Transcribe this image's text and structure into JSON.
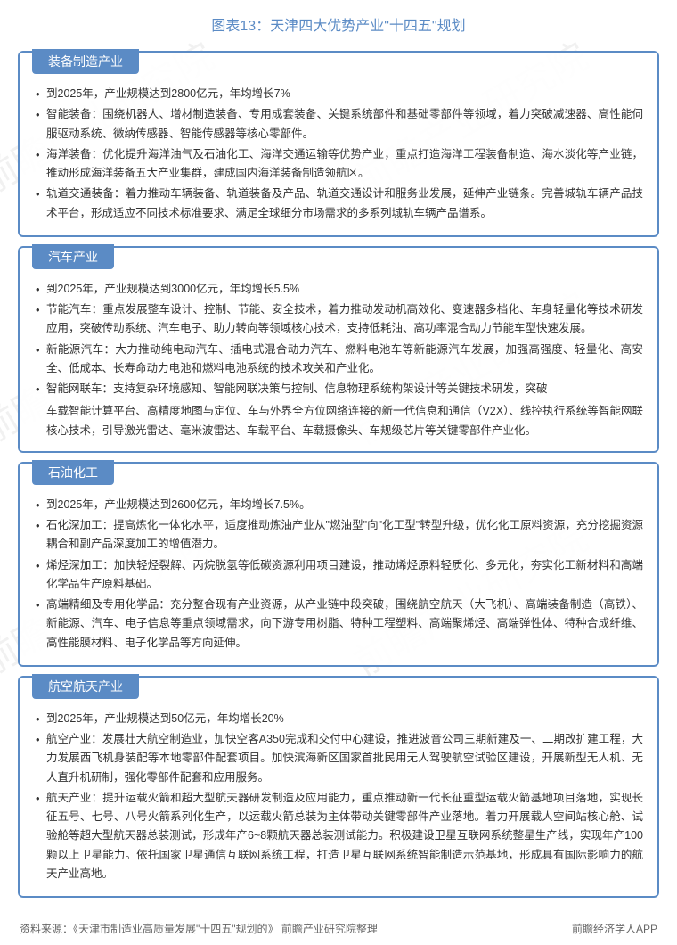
{
  "title": "图表13：天津四大优势产业\"十四五\"规划",
  "watermark_text": "前瞻产业研究院",
  "colors": {
    "accent": "#5b8bc5",
    "text": "#333333",
    "footer_text": "#666666",
    "background": "#ffffff"
  },
  "sections": [
    {
      "header": "装备制造产业",
      "bullets": [
        "到2025年，产业规模达到2800亿元，年均增长7%",
        "智能装备：围绕机器人、增材制造装备、专用成套装备、关键系统部件和基础零部件等领域，着力突破减速器、高性能伺服驱动系统、微纳传感器、智能传感器等核心零部件。",
        "海洋装备：优化提升海洋油气及石油化工、海洋交通运输等优势产业，重点打造海洋工程装备制造、海水淡化等产业链，推动形成海洋装备五大产业集群，建成国内海洋装备制造领航区。",
        "轨道交通装备：着力推动车辆装备、轨道装备及产品、轨道交通设计和服务业发展，延伸产业链条。完善城轨车辆产品技术平台，形成适应不同技术标准要求、满足全球细分市场需求的多系列城轨车辆产品谱系。"
      ]
    },
    {
      "header": "汽车产业",
      "bullets": [
        "到2025年，产业规模达到3000亿元，年均增长5.5%",
        "节能汽车：重点发展整车设计、控制、节能、安全技术，着力推动发动机高效化、变速器多档化、车身轻量化等技术研发应用，突破传动系统、汽车电子、助力转向等领域核心技术，支持低耗油、高功率混合动力节能车型快速发展。",
        "新能源汽车：大力推动纯电动汽车、插电式混合动力汽车、燃料电池车等新能源汽车发展，加强高强度、轻量化、高安全、低成本、长寿命动力电池和燃料电池系统的技术攻关和产业化。",
        "智能网联车：支持复杂环境感知、智能网联决策与控制、信息物理系统构架设计等关键技术研发，突破"
      ],
      "extra": "车载智能计算平台、高精度地图与定位、车与外界全方位网络连接的新一代信息和通信（V2X）、线控执行系统等智能网联核心技术，引导激光雷达、毫米波雷达、车载平台、车载摄像头、车规级芯片等关键零部件产业化。"
    },
    {
      "header": "石油化工",
      "bullets": [
        "到2025年，产业规模达到2600亿元，年均增长7.5%。",
        "石化深加工：提高炼化一体化水平，适度推动炼油产业从\"燃油型\"向\"化工型\"转型升级，优化化工原料资源，充分挖掘资源耦合和副产品深度加工的增值潜力。",
        "烯烃深加工：加快轻烃裂解、丙烷脱氢等低碳资源利用项目建设，推动烯烃原料轻质化、多元化，夯实化工新材料和高端化学品生产原料基础。",
        "高端精细及专用化学品：充分整合现有产业资源，从产业链中段突破，围绕航空航天（大飞机）、高端装备制造（高铁）、新能源、汽车、电子信息等重点领域需求，向下游专用树脂、特种工程塑料、高端聚烯烃、高端弹性体、特种合成纤维、高性能膜材料、电子化学品等方向延伸。"
      ]
    },
    {
      "header": "航空航天产业",
      "bullets": [
        "到2025年，产业规模达到50亿元，年均增长20%",
        "航空产业：发展壮大航空制造业，加快空客A350完成和交付中心建设，推进波音公司三期新建及一、二期改扩建工程，大力发展西飞机身装配等本地零部件配套项目。加快滨海新区国家首批民用无人驾驶航空试验区建设，开展新型无人机、无人直升机研制，强化零部件配套和应用服务。",
        "航天产业：提升运载火箭和超大型航天器研发制造及应用能力，重点推动新一代长征重型运载火箭基地项目落地，实现长征五号、七号、八号火箭系列化生产，以运载火箭总装为主体带动关键零部件产业落地。着力开展载人空间站核心舱、试验舱等超大型航天器总装测试，形成年产6~8颗航天器总装测试能力。积极建设卫星互联网系统整星生产线，实现年产100颗以上卫星能力。依托国家卫星通信互联网系统工程，打造卫星互联网系统智能制造示范基地，形成具有国际影响力的航天产业高地。"
      ]
    }
  ],
  "footer": {
    "source": "资料来源：《天津市制造业高质量发展\"十四五\"规划的》 前瞻产业研究院整理",
    "app": "前瞻经济学人APP"
  }
}
